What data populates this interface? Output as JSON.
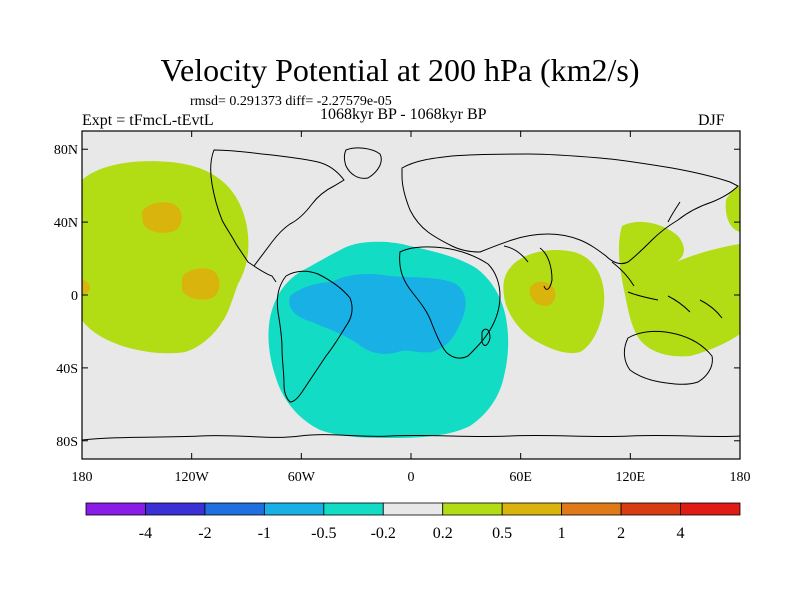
{
  "title": "Velocity Potential at 200 hPa (km2/s)",
  "stats": "rmsd= 0.291373 diff= -2.27579e-05",
  "left_label": "Expt = tFmcL-tEvtL",
  "center_label": "1068kyr BP - 1068kyr BP",
  "right_label": "DJF",
  "y_ticks": [
    {
      "label": "80N",
      "value": 80
    },
    {
      "label": "40N",
      "value": 40
    },
    {
      "label": "0",
      "value": 0
    },
    {
      "label": "40S",
      "value": -40
    },
    {
      "label": "80S",
      "value": -80
    }
  ],
  "x_ticks": [
    {
      "label": "180",
      "value": -180
    },
    {
      "label": "120W",
      "value": -120
    },
    {
      "label": "60W",
      "value": -60
    },
    {
      "label": "0",
      "value": 0
    },
    {
      "label": "60E",
      "value": 60
    },
    {
      "label": "120E",
      "value": 120
    },
    {
      "label": "180",
      "value": 180
    }
  ],
  "colorbar": {
    "colors": [
      "#8a1ce8",
      "#3b2fd6",
      "#1f6fe0",
      "#19b0e6",
      "#12dcc4",
      "#e8e8e8",
      "#b2dc14",
      "#d8b40c",
      "#e07a18",
      "#d83c10",
      "#e01a14"
    ],
    "labels": [
      "-4",
      "-2",
      "-1",
      "-0.5",
      "-0.2",
      "0.2",
      "0.5",
      "1",
      "2",
      "4"
    ]
  },
  "colors": {
    "background_field": "#e8e8e8",
    "level_0_2_to_0_5": "#b2dc14",
    "level_0_5_to_1": "#d8b40c",
    "level_neg_0_2_to_neg_0_5": "#12dcc4",
    "level_neg_0_5_to_neg_1": "#19b0e6"
  }
}
